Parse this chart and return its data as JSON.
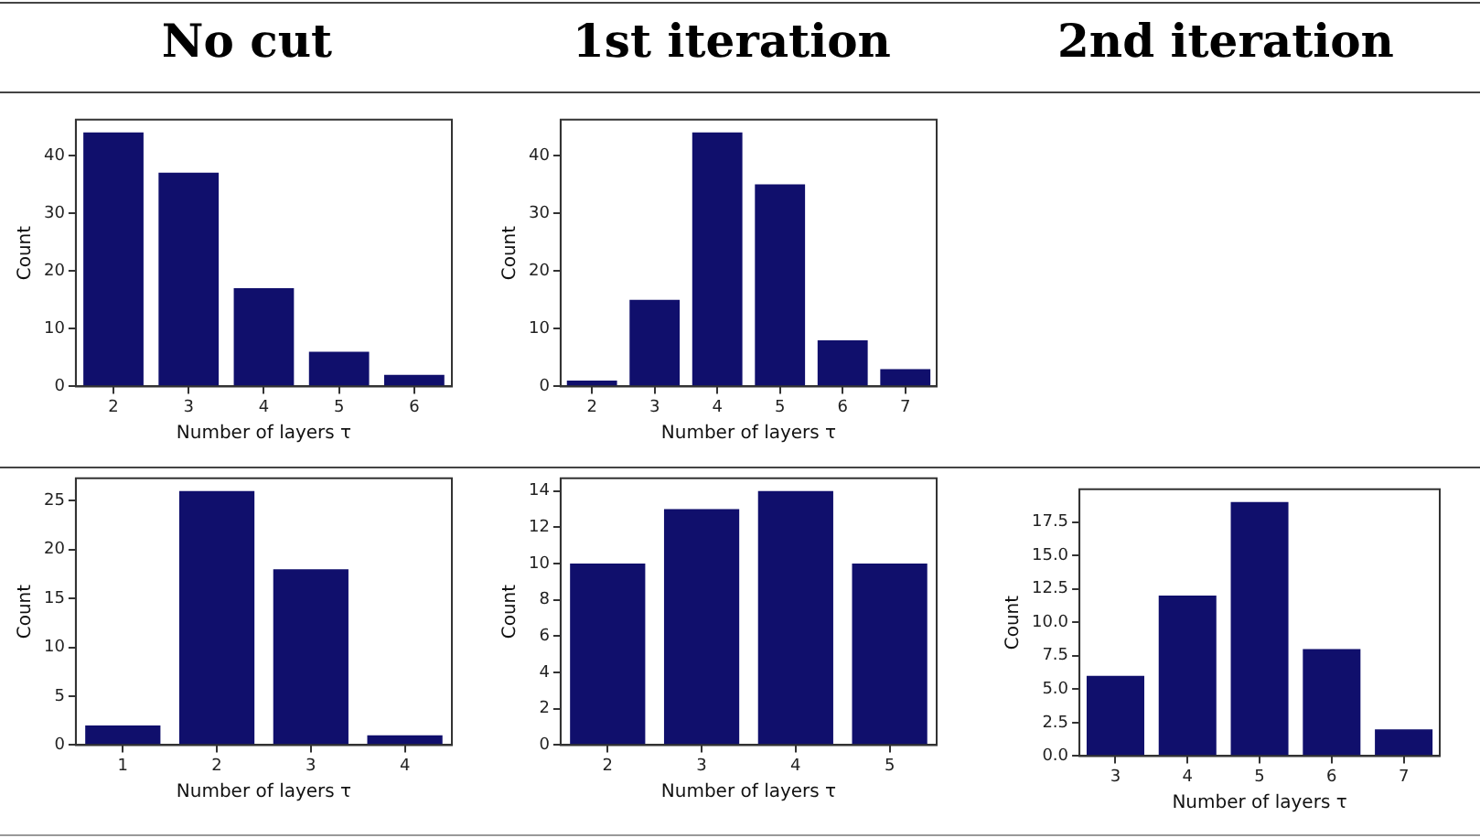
{
  "chart_data": [
    {
      "type": "other",
      "annotations": [
        "No cut",
        "1st iteration",
        "2nd iteration"
      ]
    },
    {
      "type": "bar",
      "categories": [
        "2",
        "3",
        "4",
        "5",
        "6"
      ],
      "values": [
        44,
        37,
        17,
        6,
        2
      ],
      "color": "#100f6c",
      "xlabel": "Number of layers τ",
      "ylabel": "Count",
      "ylim": [
        0,
        46.2
      ],
      "yticks": [
        0,
        10,
        20,
        30,
        40
      ],
      "grid": false
    },
    {
      "type": "bar",
      "categories": [
        "2",
        "3",
        "4",
        "5",
        "6",
        "7"
      ],
      "values": [
        1,
        15,
        44,
        35,
        8,
        3
      ],
      "color": "#100f6c",
      "xlabel": "Number of layers τ",
      "ylabel": "Count",
      "ylim": [
        0,
        46.2
      ],
      "yticks": [
        0,
        10,
        20,
        30,
        40
      ],
      "grid": false
    },
    {
      "type": "bar",
      "categories": [
        "1",
        "2",
        "3",
        "4"
      ],
      "values": [
        2,
        26,
        18,
        1
      ],
      "color": "#100f6c",
      "xlabel": "Number of layers τ",
      "ylabel": "Count",
      "ylim": [
        0,
        27.3
      ],
      "yticks": [
        0,
        5,
        10,
        15,
        20,
        25
      ],
      "grid": false
    },
    {
      "type": "bar",
      "categories": [
        "2",
        "3",
        "4",
        "5"
      ],
      "values": [
        10,
        13,
        14,
        10
      ],
      "color": "#100f6c",
      "xlabel": "Number of layers τ",
      "ylabel": "Count",
      "ylim": [
        0,
        14.7
      ],
      "yticks": [
        0,
        2,
        4,
        6,
        8,
        10,
        12,
        14
      ],
      "grid": false
    },
    {
      "type": "bar",
      "categories": [
        "3",
        "4",
        "5",
        "6",
        "7"
      ],
      "values": [
        6,
        12,
        19,
        8,
        2
      ],
      "color": "#100f6c",
      "xlabel": "Number of layers τ",
      "ylabel": "Count",
      "ylim": [
        0,
        19.95
      ],
      "yticks": [
        {
          "value": 0,
          "label": "0.0"
        },
        {
          "value": 2.5,
          "label": "2.5"
        },
        {
          "value": 5,
          "label": "5.0"
        },
        {
          "value": 7.5,
          "label": "7.5"
        },
        {
          "value": 10,
          "label": "10.0"
        },
        {
          "value": 12.5,
          "label": "12.5"
        },
        {
          "value": 15,
          "label": "15.0"
        },
        {
          "value": 17.5,
          "label": "17.5"
        }
      ],
      "grid": false
    }
  ]
}
